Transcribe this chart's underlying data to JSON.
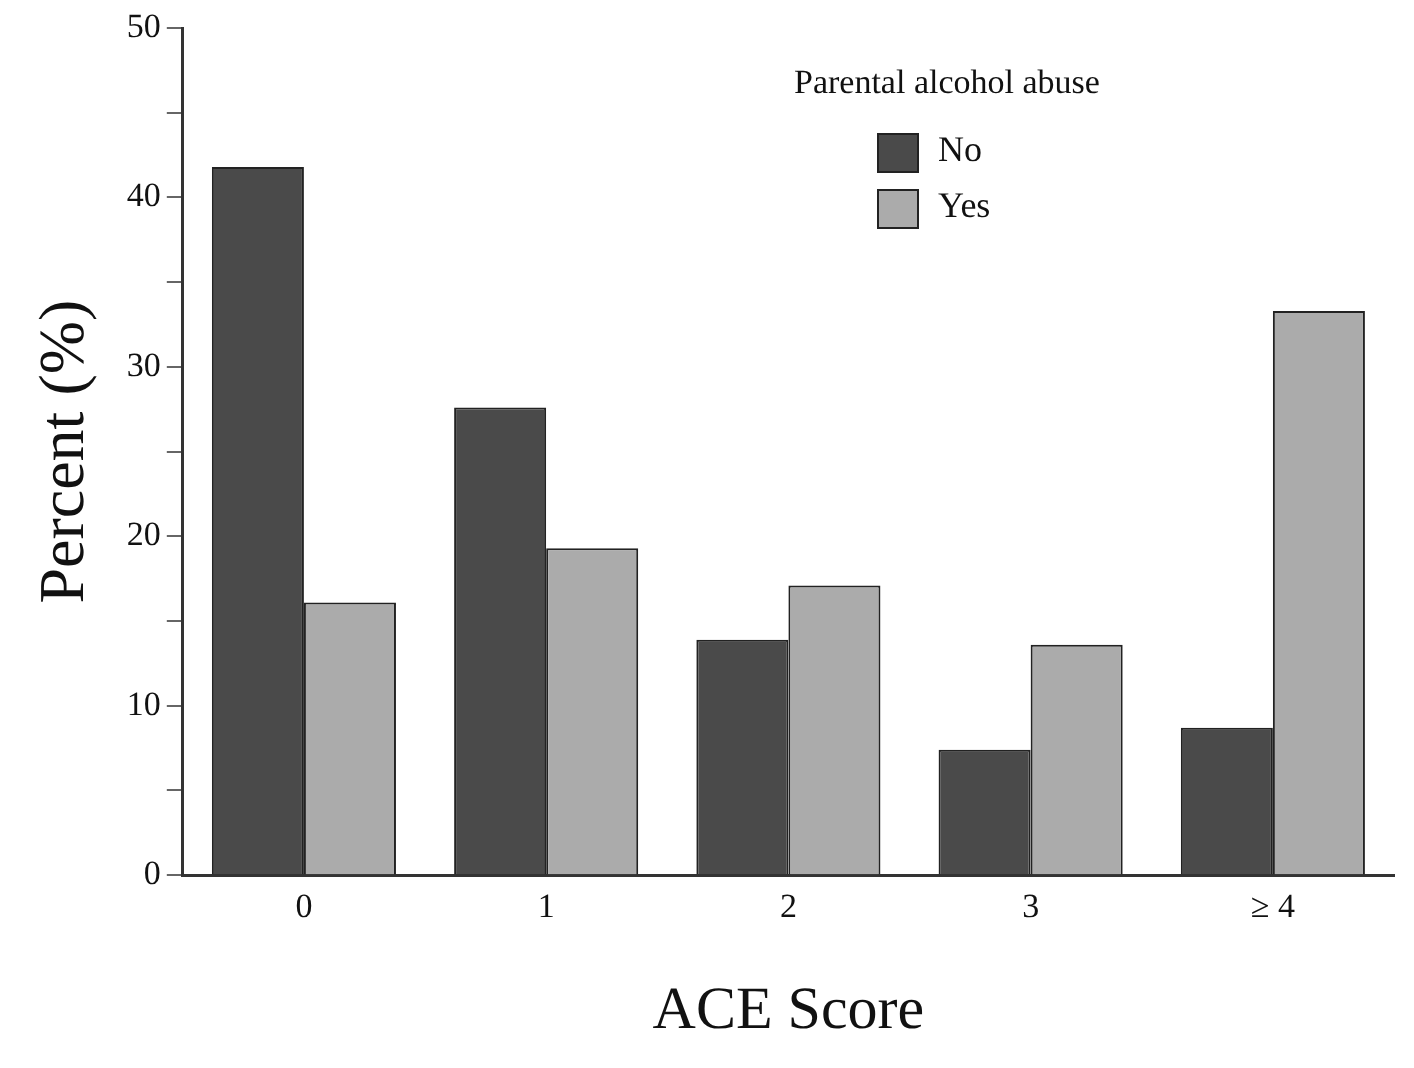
{
  "chart_data": {
    "type": "bar",
    "xlabel": "ACE Score",
    "ylabel": "Percent (%)",
    "legend_title": "Parental alcohol abuse",
    "legend": "top right",
    "categories": [
      "0",
      "1",
      "2",
      "3",
      "≥ 4"
    ],
    "series": [
      {
        "name": "No",
        "color": "#4a4a4a",
        "values": [
          41.8,
          27.6,
          13.9,
          7.4,
          8.7
        ]
      },
      {
        "name": "Yes",
        "color": "#ababab",
        "values": [
          16.1,
          19.3,
          17.1,
          13.6,
          33.3
        ]
      }
    ],
    "ylim": [
      0,
      50
    ],
    "yticks": [
      0,
      {
        "value": 5,
        "label": null
      },
      10,
      {
        "value": 15,
        "label": null
      },
      20,
      {
        "value": 25,
        "label": null
      },
      30,
      {
        "value": 35,
        "label": null
      },
      40,
      {
        "value": 45,
        "label": null
      },
      50
    ],
    "grid": false
  }
}
